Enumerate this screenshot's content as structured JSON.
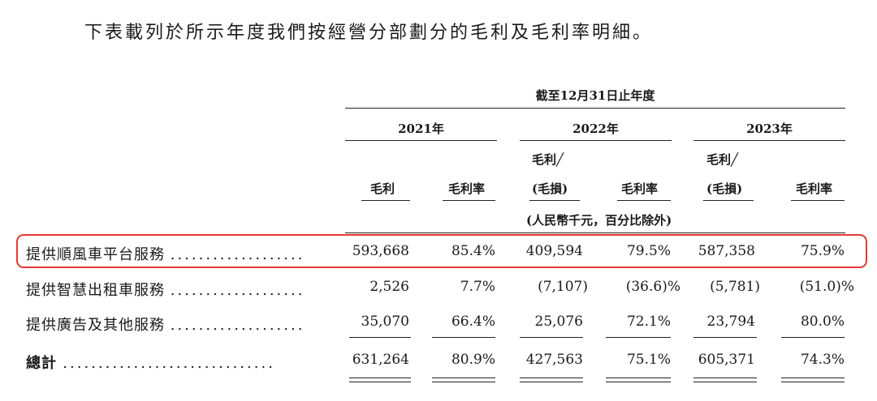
{
  "intro": "下表載列於所示年度我們按經營分部劃分的毛利及毛利率明細。",
  "header": {
    "period": "截至12月31日止年度",
    "years": [
      "2021年",
      "2022年",
      "2023年"
    ],
    "col_2021_gp": "毛利",
    "col_2021_gm": "毛利率",
    "col_2022_gp_line1": "毛利╱",
    "col_2022_gp_line2": "(毛損)",
    "col_2022_gm": "毛利率",
    "col_2023_gp_line1": "毛利╱",
    "col_2023_gp_line2": "(毛損)",
    "col_2023_gm": "毛利率",
    "unit": "(人民幣千元，百分比除外)"
  },
  "rows": [
    {
      "label": "提供順風車平台服務",
      "dots": "...................",
      "values": [
        "593,668",
        "85.4%",
        "409,594",
        "79.5%",
        "587,358",
        "75.9%"
      ]
    },
    {
      "label": "提供智慧出租車服務",
      "dots": "...................",
      "values": [
        "2,526",
        "7.7%",
        "(7,107)",
        "(36.6)%",
        "(5,781)",
        "(51.0)%"
      ]
    },
    {
      "label": "提供廣告及其他服務",
      "dots": "...................",
      "values": [
        "35,070",
        "66.4%",
        "25,076",
        "72.1%",
        "23,794",
        "80.0%"
      ]
    },
    {
      "label": "總計",
      "dots": "..............................",
      "values": [
        "631,264",
        "80.9%",
        "427,563",
        "75.1%",
        "605,371",
        "74.3%"
      ]
    }
  ],
  "highlight_color": "#e53935"
}
